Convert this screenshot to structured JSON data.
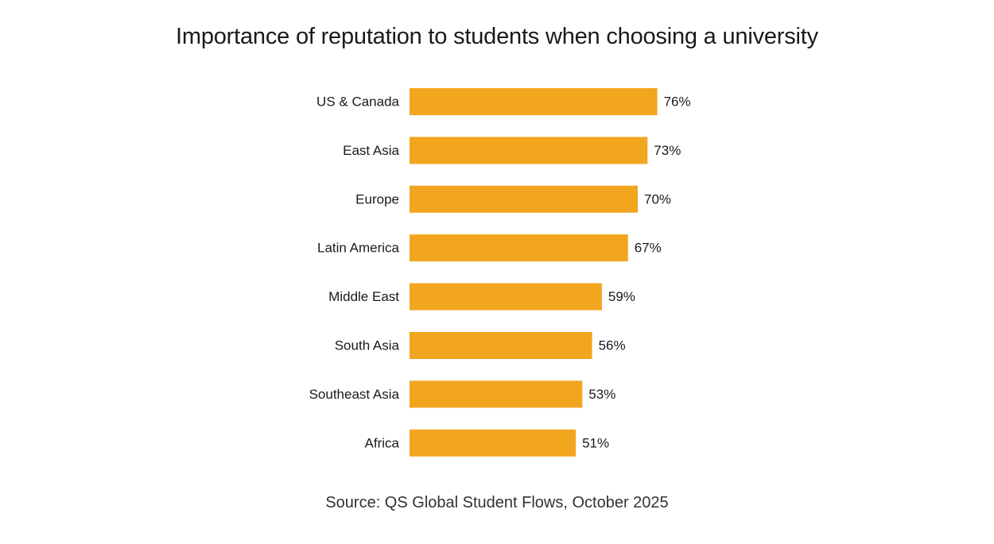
{
  "chart_data": {
    "type": "bar",
    "orientation": "horizontal",
    "title": "Importance of reputation to students when choosing a university",
    "categories": [
      "US & Canada",
      "East Asia",
      "Europe",
      "Latin America",
      "Middle East",
      "South Asia",
      "Southeast Asia",
      "Africa"
    ],
    "values": [
      76,
      73,
      70,
      67,
      59,
      56,
      53,
      51
    ],
    "value_labels": [
      "76%",
      "73%",
      "70%",
      "67%",
      "59%",
      "56%",
      "53%",
      "51%"
    ],
    "unit": "%",
    "xlim": [
      0,
      100
    ],
    "grid": false,
    "legend": "none",
    "bar_color": "#F2A51E",
    "source": "Source: QS Global Student Flows, October 2025"
  }
}
